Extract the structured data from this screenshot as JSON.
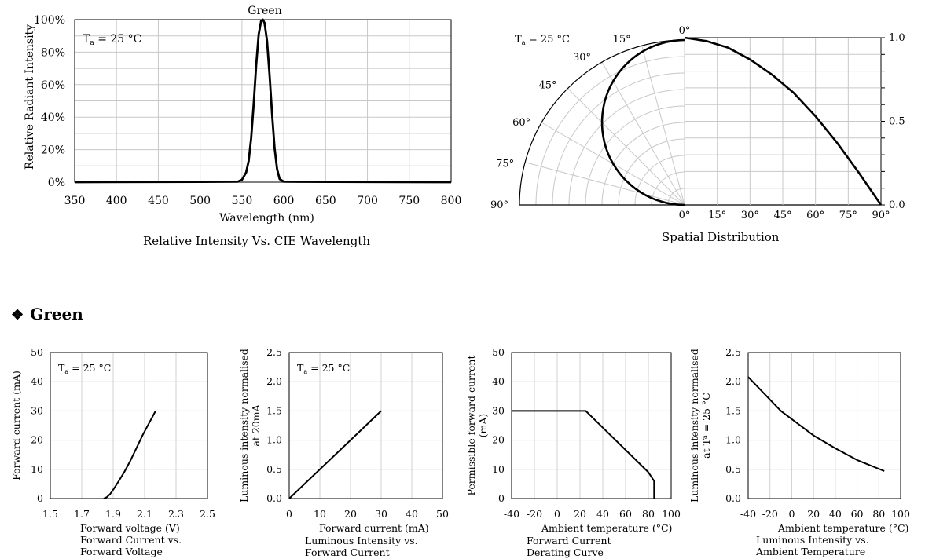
{
  "spectrum": {
    "title": "Green",
    "ambient": "T",
    "ambient_sub": "a",
    "ambient_val": " = 25 °C",
    "caption": "Relative Intensity Vs. CIE Wavelength"
  },
  "polar": {
    "ambient": "T",
    "ambient_sub": "a",
    "ambient_val": " = 25 °C",
    "caption": "Spatial Distribution"
  },
  "section": {
    "bullet": "❖",
    "title": "Green"
  },
  "small": {
    "iv": {
      "ambient": "T",
      "ambient_sub": "a",
      "ambient_val": " = 25 °C",
      "caption": [
        "Forward Current vs.",
        "Forward Voltage"
      ]
    },
    "li": {
      "ambient": "T",
      "ambient_sub": "a",
      "ambient_val": " = 25 °C",
      "caption": [
        "Luminous Intensity vs.",
        "Forward Current"
      ]
    },
    "derating": {
      "caption": [
        "Forward Current",
        "Derating  Curve"
      ]
    },
    "temp": {
      "caption": [
        "Luminous Intensity vs.",
        "Ambient Temperature"
      ]
    }
  },
  "chart_data": [
    {
      "id": "spectrum",
      "type": "line",
      "title": "Green",
      "xlabel": "Wavelength (nm)",
      "ylabel": "Relative Radiant Intensity",
      "xlim": [
        350,
        800
      ],
      "ylim": [
        0,
        100
      ],
      "xticks": [
        350,
        400,
        450,
        500,
        550,
        600,
        650,
        700,
        750,
        800
      ],
      "yticks": [
        "0%",
        "20%",
        "40%",
        "60%",
        "80%",
        "100%"
      ],
      "grid": true,
      "series": [
        {
          "x": [
            350,
            545,
            550,
            555,
            558,
            561,
            564,
            567,
            570,
            573,
            575,
            577,
            580,
            583,
            586,
            589,
            592,
            595,
            600,
            800
          ],
          "y": [
            0,
            0.3,
            1.5,
            6,
            13,
            27,
            48,
            72,
            91,
            99.5,
            100,
            98,
            87,
            66,
            42,
            21,
            8,
            2,
            0.3,
            0
          ]
        }
      ]
    },
    {
      "id": "spatial",
      "type": "line",
      "title": "",
      "xlabel": "",
      "ylabel": "",
      "angles_deg": [
        0,
        15,
        30,
        45,
        60,
        75,
        90
      ],
      "x": [
        0,
        10,
        20,
        30,
        40,
        50,
        60,
        70,
        80,
        90
      ],
      "y": [
        1.0,
        0.98,
        0.94,
        0.87,
        0.78,
        0.67,
        0.53,
        0.37,
        0.19,
        0.0
      ],
      "xticks": [
        "0°",
        "15°",
        "30°",
        "45°",
        "60°",
        "75°",
        "90°"
      ],
      "yticks": [
        "0.0",
        "0.5",
        "1.0"
      ]
    },
    {
      "id": "iv",
      "type": "line",
      "xlabel": "Forward voltage (V)",
      "ylabel": "Forward current (mA)",
      "xlim": [
        1.5,
        2.5
      ],
      "ylim": [
        0,
        50
      ],
      "xticks": [
        "1.5",
        "1.7",
        "1.9",
        "2.1",
        "2.3",
        "2.5"
      ],
      "yticks": [
        "0",
        "10",
        "20",
        "30",
        "40",
        "50"
      ],
      "x": [
        1.84,
        1.86,
        1.88,
        1.9,
        1.93,
        1.97,
        2.01,
        2.05,
        2.09,
        2.13,
        2.17
      ],
      "y": [
        0,
        0.5,
        1.5,
        3,
        5.5,
        9,
        13,
        17.5,
        22,
        26,
        30
      ]
    },
    {
      "id": "li",
      "type": "line",
      "xlabel": "Forward current (mA)",
      "ylabel": "Luminous intensity normalised at 20mA",
      "xlim": [
        0,
        50
      ],
      "ylim": [
        0,
        2.5
      ],
      "xticks": [
        "0",
        "10",
        "20",
        "30",
        "40",
        "50"
      ],
      "yticks": [
        "0.0",
        "0.5",
        "1.0",
        "1.5",
        "2.0",
        "2.5"
      ],
      "x": [
        0,
        30
      ],
      "y": [
        0,
        1.5
      ]
    },
    {
      "id": "derating",
      "type": "line",
      "xlabel": "Ambient temperature (°C)",
      "ylabel": "Permissible forward current (mA)",
      "xlim": [
        -40,
        100
      ],
      "ylim": [
        0,
        50
      ],
      "xticks": [
        "-40",
        "-20",
        "0",
        "20",
        "40",
        "60",
        "80",
        "100"
      ],
      "yticks": [
        "0",
        "10",
        "20",
        "30",
        "40",
        "50"
      ],
      "x": [
        -40,
        25,
        80,
        85,
        85
      ],
      "y": [
        30,
        30,
        9,
        6,
        0
      ]
    },
    {
      "id": "temp",
      "type": "line",
      "xlabel": "Ambient temperature (°C)",
      "ylabel": "Luminous intensity normalised at Tᵃ = 25 °C",
      "xlim": [
        -40,
        100
      ],
      "ylim": [
        0,
        2.5
      ],
      "xticks": [
        "-40",
        "-20",
        "0",
        "20",
        "40",
        "60",
        "80",
        "100"
      ],
      "yticks": [
        "0.0",
        "0.5",
        "1.0",
        "1.5",
        "2.0",
        "2.5"
      ],
      "x": [
        -40,
        -10,
        20,
        40,
        60,
        85
      ],
      "y": [
        2.08,
        1.5,
        1.08,
        0.86,
        0.66,
        0.47
      ]
    }
  ]
}
